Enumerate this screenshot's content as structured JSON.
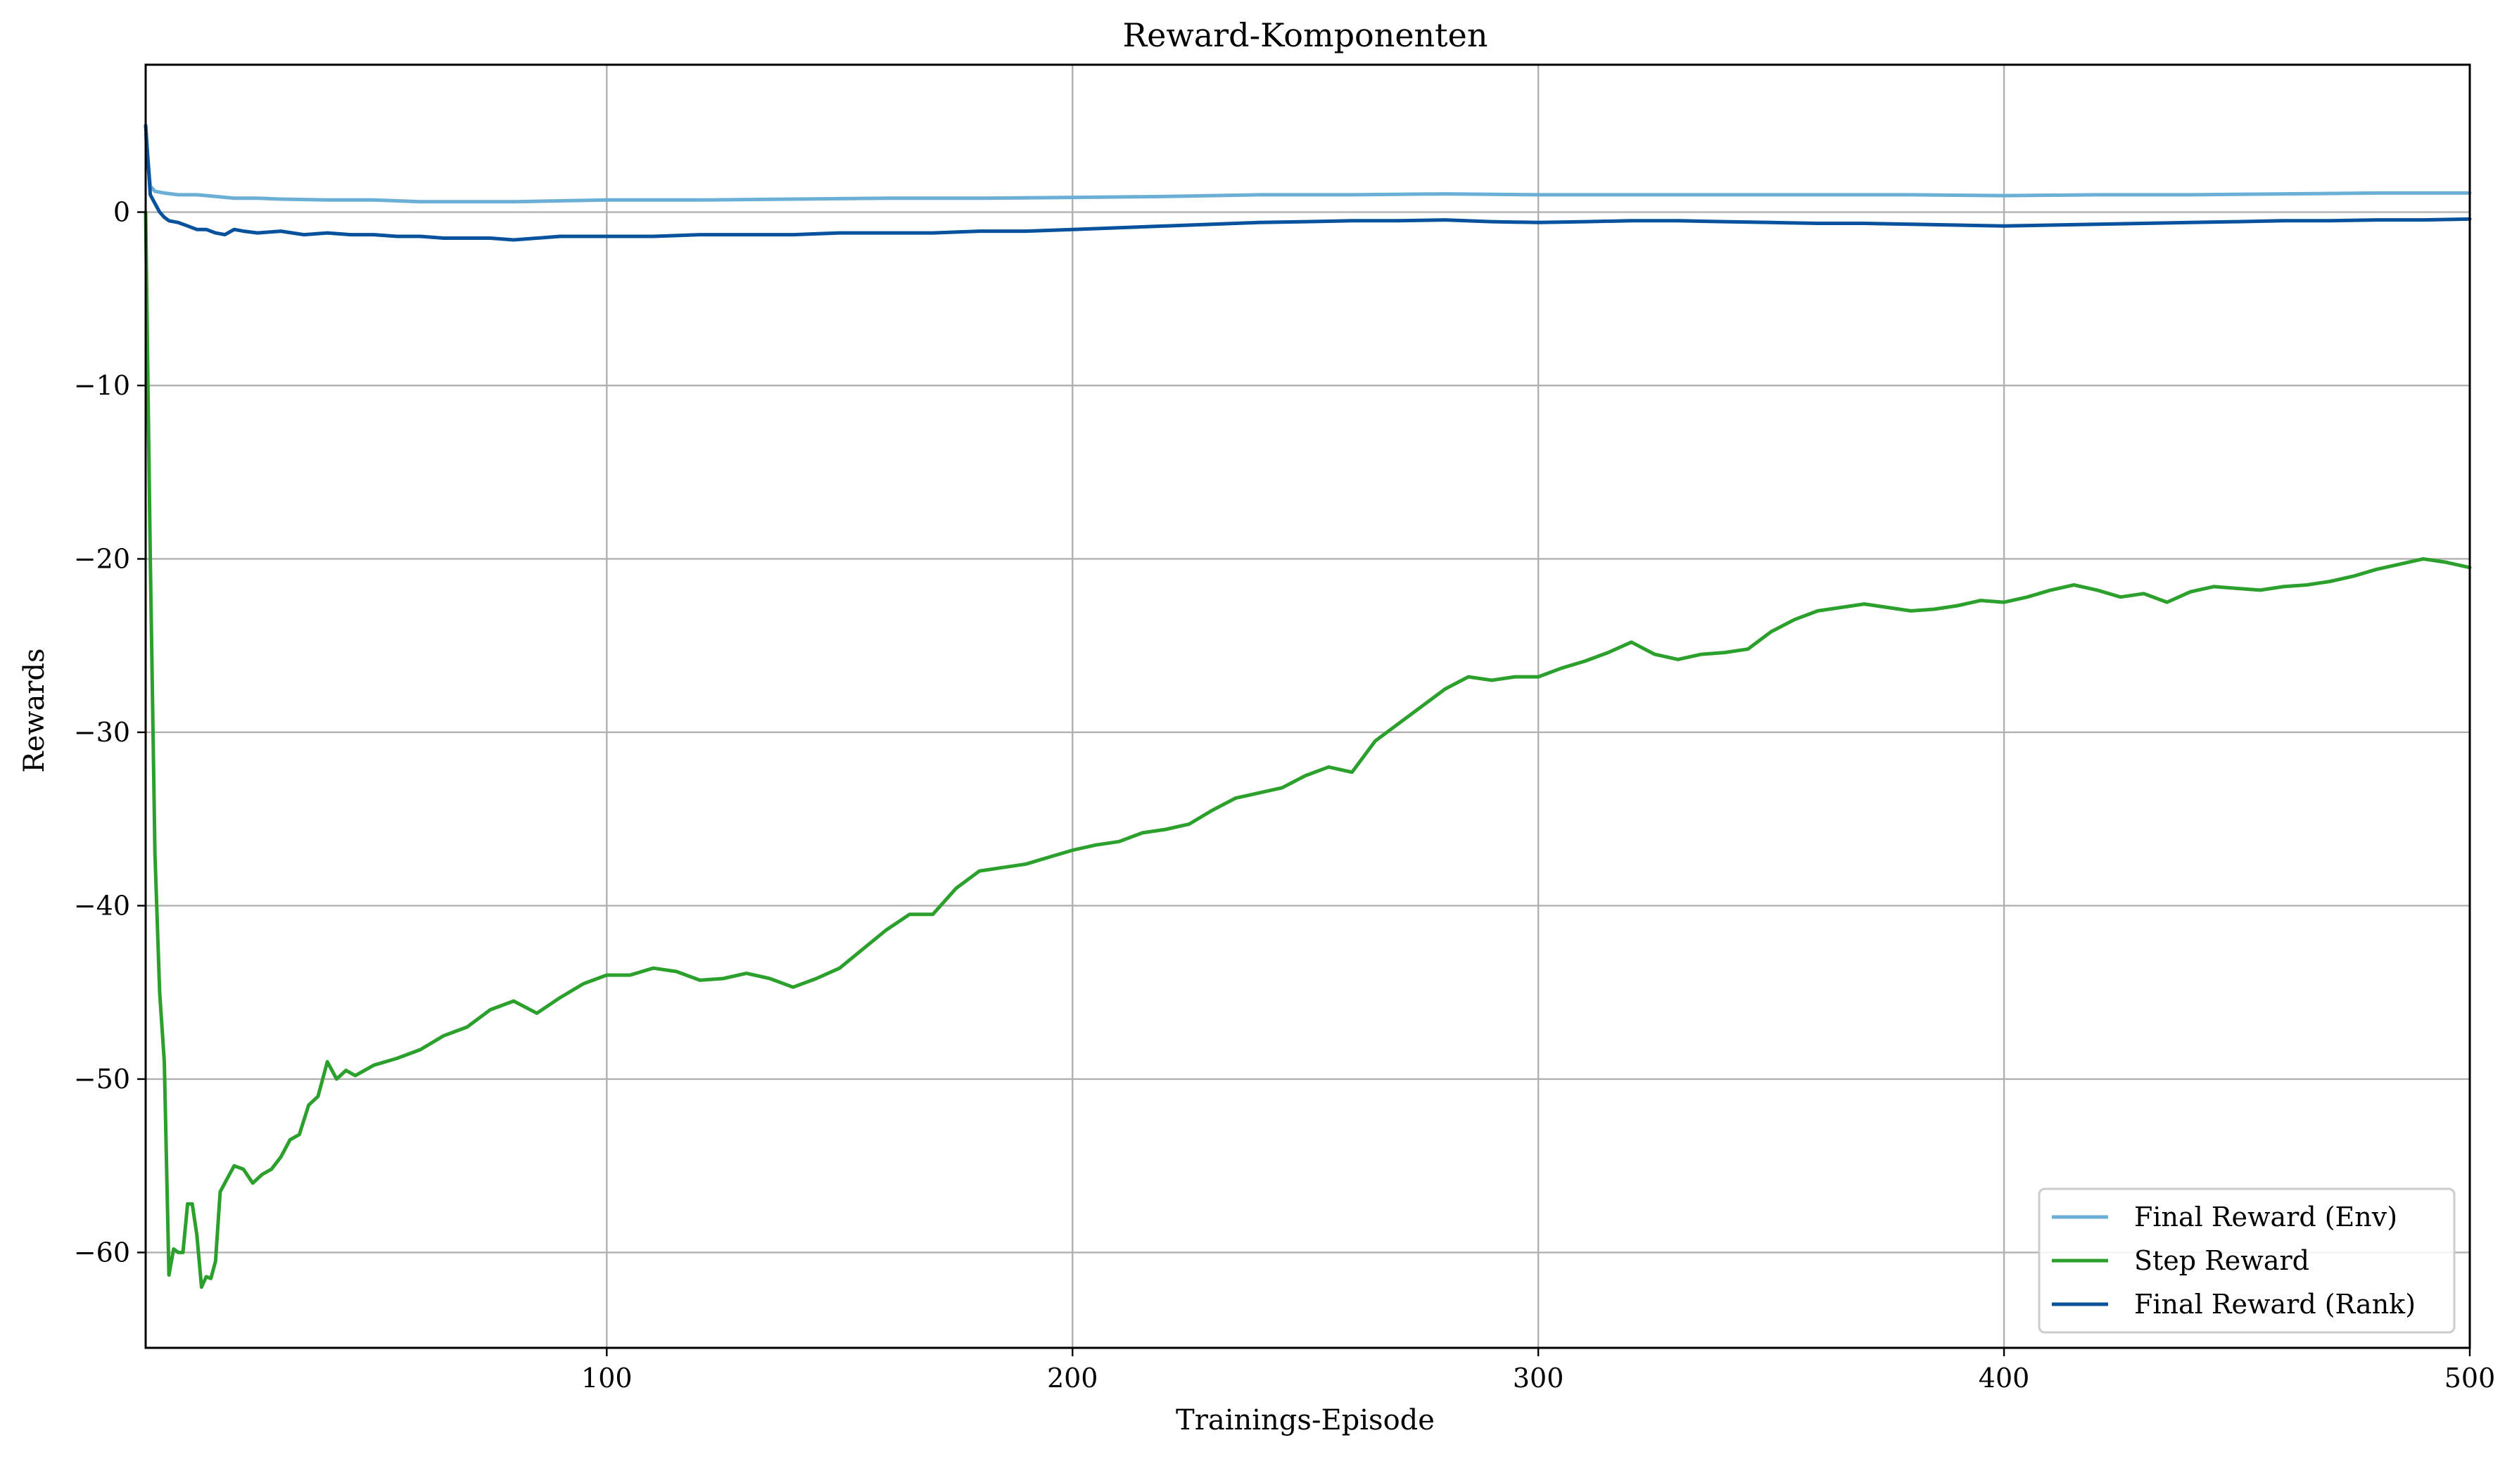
{
  "chart_data": {
    "type": "line",
    "title": "Reward-Komponenten",
    "xlabel": "Trainings-Episode",
    "ylabel": "Rewards",
    "xlim": [
      1,
      500
    ],
    "ylim": [
      -65.5,
      8.5
    ],
    "xticks": [
      100,
      200,
      300,
      400,
      500
    ],
    "xtick_labels": [
      "100",
      "200",
      "300",
      "400",
      "500"
    ],
    "yticks": [
      0,
      -10,
      -20,
      -30,
      -40,
      -50,
      -60
    ],
    "ytick_labels": [
      "0",
      "−10",
      "−20",
      "−30",
      "−40",
      "−50",
      "−60"
    ],
    "grid": true,
    "legend_position": "lower-right",
    "series": [
      {
        "name": "Final Reward (Env)",
        "color": "#6baed6",
        "x": [
          1,
          2,
          3,
          5,
          8,
          12,
          16,
          20,
          25,
          30,
          40,
          50,
          60,
          70,
          80,
          90,
          100,
          120,
          140,
          160,
          180,
          200,
          220,
          240,
          260,
          280,
          300,
          320,
          340,
          360,
          380,
          400,
          420,
          440,
          460,
          480,
          500
        ],
        "y": [
          4.5,
          1.5,
          1.2,
          1.1,
          1.0,
          1.0,
          0.9,
          0.8,
          0.8,
          0.75,
          0.7,
          0.7,
          0.6,
          0.6,
          0.6,
          0.65,
          0.7,
          0.7,
          0.75,
          0.8,
          0.8,
          0.85,
          0.9,
          1.0,
          1.0,
          1.05,
          1.0,
          1.0,
          1.0,
          1.0,
          1.0,
          0.95,
          1.0,
          1.0,
          1.05,
          1.1,
          1.1
        ]
      },
      {
        "name": "Step Reward",
        "color": "#2ca02c",
        "x": [
          1,
          2,
          3,
          4,
          5,
          6,
          7,
          8,
          9,
          10,
          11,
          12,
          13,
          14,
          15,
          16,
          17,
          18,
          19,
          20,
          22,
          24,
          26,
          28,
          30,
          32,
          34,
          36,
          38,
          40,
          42,
          44,
          46,
          48,
          50,
          55,
          60,
          65,
          70,
          75,
          80,
          85,
          90,
          95,
          100,
          105,
          110,
          115,
          120,
          125,
          130,
          135,
          140,
          145,
          150,
          155,
          160,
          165,
          170,
          175,
          180,
          185,
          190,
          195,
          200,
          205,
          210,
          215,
          220,
          225,
          230,
          235,
          240,
          245,
          250,
          255,
          260,
          265,
          270,
          275,
          280,
          285,
          290,
          295,
          300,
          305,
          310,
          315,
          320,
          325,
          330,
          335,
          340,
          345,
          350,
          355,
          360,
          365,
          370,
          375,
          380,
          385,
          390,
          395,
          400,
          405,
          410,
          415,
          420,
          425,
          430,
          435,
          440,
          445,
          450,
          455,
          460,
          465,
          470,
          475,
          480,
          485,
          490,
          495,
          500
        ],
        "y": [
          0,
          -20,
          -37,
          -45,
          -49,
          -61.3,
          -59.8,
          -60,
          -60,
          -57.2,
          -57.2,
          -59,
          -62,
          -61.4,
          -61.5,
          -60.5,
          -56.5,
          -56,
          -55.5,
          -55,
          -55.2,
          -56,
          -55.5,
          -55.2,
          -54.5,
          -53.5,
          -53.2,
          -51.5,
          -51,
          -49,
          -50,
          -49.5,
          -49.8,
          -49.5,
          -49.2,
          -48.8,
          -48.3,
          -47.5,
          -47,
          -46,
          -45.5,
          -46.2,
          -45.3,
          -44.5,
          -44.0,
          -44.0,
          -43.6,
          -43.8,
          -44.3,
          -44.2,
          -43.9,
          -44.2,
          -44.7,
          -44.2,
          -43.6,
          -42.5,
          -41.4,
          -40.5,
          -40.5,
          -39.0,
          -38.0,
          -37.8,
          -37.6,
          -37.2,
          -36.8,
          -36.5,
          -36.3,
          -35.8,
          -35.6,
          -35.3,
          -34.5,
          -33.8,
          -33.5,
          -33.2,
          -32.5,
          -32.0,
          -32.3,
          -30.5,
          -29.5,
          -28.5,
          -27.5,
          -26.8,
          -27.0,
          -26.8,
          -26.8,
          -26.3,
          -25.9,
          -25.4,
          -24.8,
          -25.5,
          -25.8,
          -25.5,
          -25.4,
          -25.2,
          -24.2,
          -23.5,
          -23.0,
          -22.8,
          -22.6,
          -22.8,
          -23.0,
          -22.9,
          -22.7,
          -22.4,
          -22.5,
          -22.2,
          -21.8,
          -21.5,
          -21.8,
          -22.2,
          -22.0,
          -22.5,
          -21.9,
          -21.6,
          -21.7,
          -21.8,
          -21.6,
          -21.5,
          -21.3,
          -21.0,
          -20.6,
          -20.3,
          -20.0,
          -20.2,
          -20.5
        ]
      },
      {
        "name": "Final Reward (Rank)",
        "color": "#08519c",
        "x": [
          1,
          2,
          3,
          4,
          5,
          6,
          8,
          10,
          12,
          14,
          16,
          18,
          20,
          22,
          25,
          30,
          35,
          40,
          45,
          50,
          55,
          60,
          65,
          70,
          75,
          80,
          90,
          100,
          110,
          120,
          130,
          140,
          150,
          160,
          170,
          180,
          190,
          200,
          210,
          220,
          230,
          240,
          250,
          260,
          270,
          280,
          290,
          300,
          310,
          320,
          330,
          340,
          350,
          360,
          370,
          380,
          390,
          400,
          410,
          420,
          430,
          440,
          450,
          460,
          470,
          480,
          490,
          500
        ],
        "y": [
          5,
          1.0,
          0.5,
          0.0,
          -0.3,
          -0.5,
          -0.6,
          -0.8,
          -1.0,
          -1.0,
          -1.2,
          -1.3,
          -1.0,
          -1.1,
          -1.2,
          -1.1,
          -1.3,
          -1.2,
          -1.3,
          -1.3,
          -1.4,
          -1.4,
          -1.5,
          -1.5,
          -1.5,
          -1.6,
          -1.4,
          -1.4,
          -1.4,
          -1.3,
          -1.3,
          -1.3,
          -1.2,
          -1.2,
          -1.2,
          -1.1,
          -1.1,
          -1.0,
          -0.9,
          -0.8,
          -0.7,
          -0.6,
          -0.55,
          -0.5,
          -0.5,
          -0.45,
          -0.55,
          -0.6,
          -0.55,
          -0.5,
          -0.5,
          -0.55,
          -0.6,
          -0.65,
          -0.65,
          -0.7,
          -0.75,
          -0.8,
          -0.75,
          -0.7,
          -0.65,
          -0.6,
          -0.55,
          -0.5,
          -0.5,
          -0.45,
          -0.45,
          -0.4
        ]
      }
    ]
  }
}
